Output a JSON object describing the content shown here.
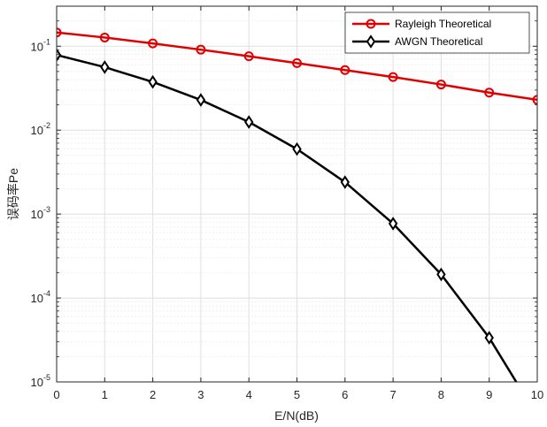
{
  "chart_data": {
    "type": "line",
    "xlabel": "E/N(dB)",
    "ylabel": "误码率Pe",
    "xlim": [
      0,
      10
    ],
    "ylim": [
      1e-05,
      0.3
    ],
    "yscale": "log",
    "x_ticks": [
      "0",
      "1",
      "2",
      "3",
      "4",
      "5",
      "6",
      "7",
      "8",
      "9",
      "10"
    ],
    "y_ticks": [
      {
        "base": "10",
        "exp": "-5",
        "value": 1e-05
      },
      {
        "base": "10",
        "exp": "-4",
        "value": 0.0001
      },
      {
        "base": "10",
        "exp": "-3",
        "value": 0.001
      },
      {
        "base": "10",
        "exp": "-2",
        "value": 0.01
      },
      {
        "base": "10",
        "exp": "-1",
        "value": 0.1
      }
    ],
    "grid": true,
    "minor_grid": true,
    "legend_position": "top-right",
    "x": [
      0,
      1,
      2,
      3,
      4,
      5,
      6,
      7,
      8,
      9,
      10
    ],
    "series": [
      {
        "name": "Rayleigh Theoretical",
        "color": "#e00000",
        "marker": "circle",
        "values": [
          0.146,
          0.127,
          0.108,
          0.091,
          0.076,
          0.063,
          0.052,
          0.043,
          0.035,
          0.028,
          0.023
        ]
      },
      {
        "name": "AWGN Theoretical",
        "color": "#000000",
        "marker": "diamond",
        "values": [
          0.0786,
          0.0563,
          0.0375,
          0.0229,
          0.0125,
          0.00595,
          0.0024,
          0.00077,
          0.000191,
          3.36e-05,
          3.9e-06
        ]
      }
    ]
  }
}
